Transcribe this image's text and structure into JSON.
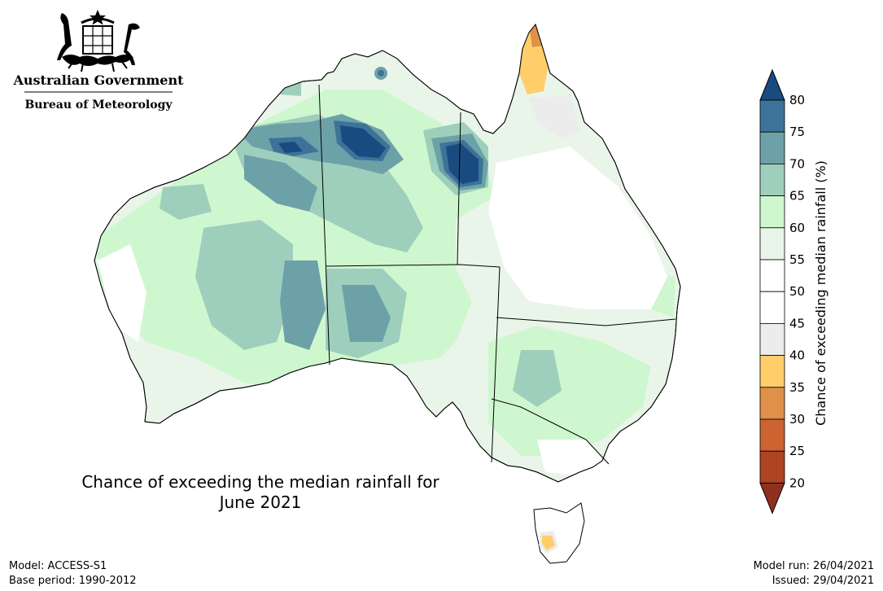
{
  "logo": {
    "line1": "Australian Government",
    "line2": "Bureau of Meteorology"
  },
  "title": {
    "line1": "Chance of exceeding the median rainfall for",
    "line2": "June 2021"
  },
  "footer": {
    "model": "Model: ACCESS-S1",
    "base_period": "Base period: 1990-2012",
    "model_run": "Model run: 26/04/2021",
    "issued": "Issued: 29/04/2021"
  },
  "legend": {
    "label": "Chance of exceeding median rainfall (%)",
    "ticks": [
      "80",
      "75",
      "70",
      "65",
      "60",
      "55",
      "50",
      "45",
      "40",
      "35",
      "30",
      "25",
      "20"
    ],
    "bins": [
      {
        "range": "75-80",
        "color": "#3e7399"
      },
      {
        "range": "70-75",
        "color": "#6da1a8"
      },
      {
        "range": "65-70",
        "color": "#9ecfbc"
      },
      {
        "range": "60-65",
        "color": "#cff7cf"
      },
      {
        "range": "55-60",
        "color": "#eaf5ea"
      },
      {
        "range": "50-55",
        "color": "#ffffff"
      },
      {
        "range": "45-50",
        "color": "#ffffff"
      },
      {
        "range": "40-45",
        "color": "#ececec"
      },
      {
        "range": "35-40",
        "color": "#ffcd6a"
      },
      {
        "range": "30-35",
        "color": "#df9049"
      },
      {
        "range": "25-30",
        "color": "#cc6330"
      },
      {
        "range": "20-25",
        "color": "#ad4422"
      }
    ],
    "over_color": "#1a4b80",
    "under_color": "#8f3020"
  },
  "map": {
    "region": "Australia",
    "land_base_color": "#eaf5ea",
    "coast_color": "#000000"
  }
}
